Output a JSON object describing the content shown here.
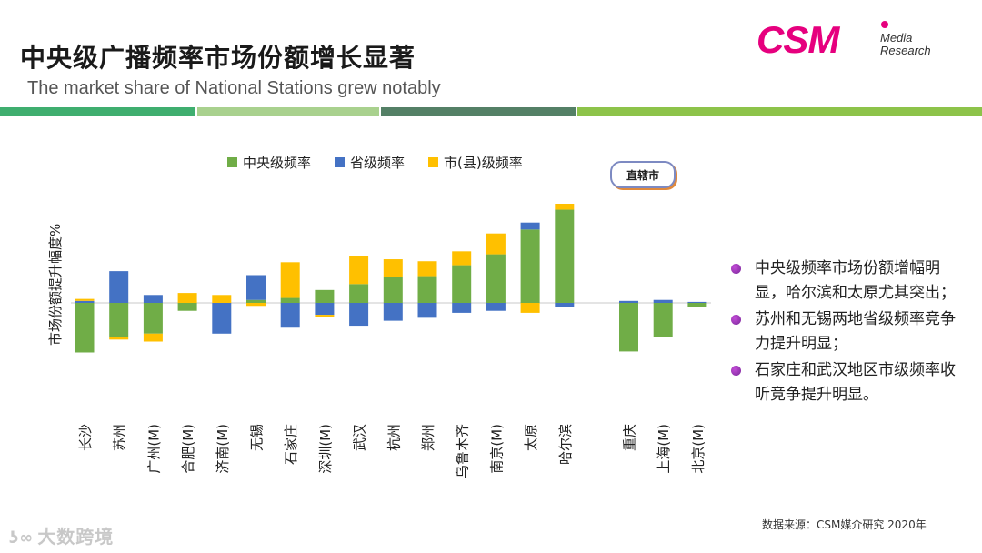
{
  "header": {
    "title_cn": "中央级广播频率市场份额增长显著",
    "title_en": "The market share of National Stations grew notably"
  },
  "logo": {
    "main": "CSM",
    "line1": "Media",
    "line2": "Research"
  },
  "colors": {
    "green": "#70ad47",
    "blue": "#4472c4",
    "yellow": "#ffc000",
    "stripe1": "#3fae6f",
    "stripe2": "#a9d18e",
    "stripe3": "#548066",
    "stripe4": "#8dc34a"
  },
  "chart_data": {
    "type": "bar",
    "stacked": true,
    "ylabel": "市场份额提升幅度%",
    "categories": [
      "长沙",
      "苏州",
      "广州(M)",
      "合肥(M)",
      "济南(M)",
      "无锡",
      "石家庄",
      "深圳(M)",
      "武汉",
      "杭州",
      "郑州",
      "乌鲁木齐",
      "南京(M)",
      "太原",
      "哈尔滨",
      "重庆",
      "上海(M)",
      "北京(M)"
    ],
    "group_label": "直辖市",
    "group_start_index": 15,
    "series": [
      {
        "name": "中央级频率",
        "values": [
          -5.0,
          -3.4,
          -3.1,
          -0.8,
          0,
          0.3,
          0.5,
          1.3,
          1.9,
          2.6,
          2.7,
          3.8,
          4.9,
          7.4,
          9.4,
          -4.9,
          -3.4,
          -0.4
        ]
      },
      {
        "name": "省级频率",
        "values": [
          0.2,
          3.2,
          0.8,
          0,
          -3.1,
          2.5,
          -2.5,
          -1.2,
          -2.3,
          -1.8,
          -1.5,
          -1.0,
          -0.8,
          0.7,
          -0.4,
          0.2,
          0.3,
          0.1
        ]
      },
      {
        "name": "市(县)级频率",
        "values": [
          0.2,
          -0.3,
          -0.8,
          1.0,
          0.8,
          -0.3,
          3.6,
          -0.2,
          2.8,
          1.8,
          1.5,
          1.4,
          2.1,
          -1.0,
          0.6,
          0,
          0,
          0
        ]
      }
    ]
  },
  "bullets": [
    "中央级频率市场份额增幅明显，哈尔滨和太原尤其突出；",
    "苏州和无锡两地省级频率竞争力提升明显；",
    "石家庄和武汉地区市级频率收听竞争提升明显。"
  ],
  "source": "数据来源：CSM媒介研究  2020年",
  "watermark": "大数跨境"
}
